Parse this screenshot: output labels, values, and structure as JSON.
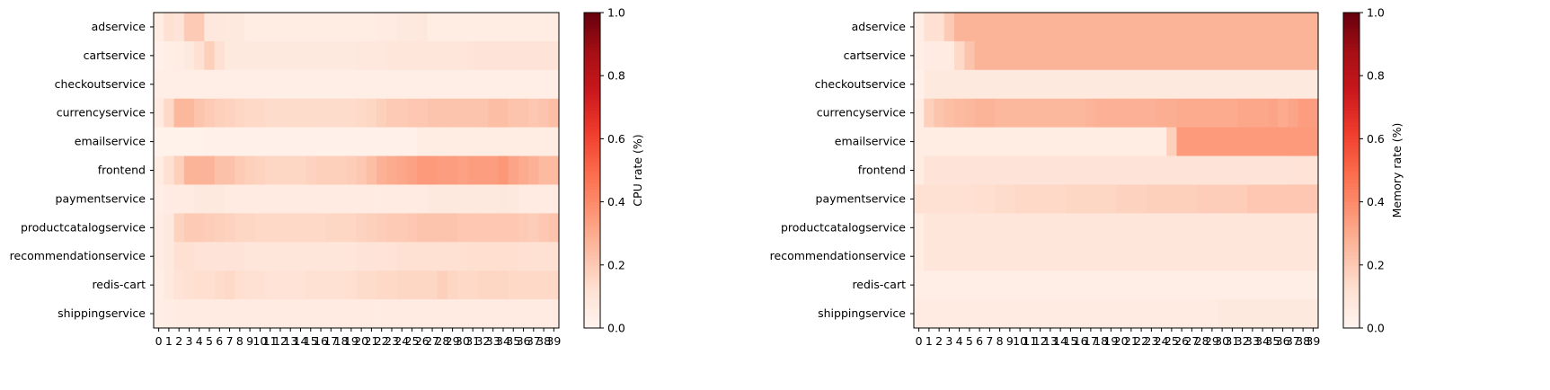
{
  "chart_data": [
    {
      "type": "heatmap",
      "title": "",
      "xlabel": "",
      "ylabel": "",
      "colorbar_label": "CPU rate (%)",
      "colormap": "Reds",
      "vmin": 0,
      "vmax": 1,
      "colorbar_ticks": [
        "0.0",
        "0.2",
        "0.4",
        "0.6",
        "0.8",
        "1.0"
      ],
      "x": [
        0,
        1,
        2,
        3,
        4,
        5,
        6,
        7,
        8,
        9,
        10,
        11,
        12,
        13,
        14,
        15,
        16,
        17,
        18,
        19,
        20,
        21,
        22,
        23,
        24,
        25,
        26,
        27,
        28,
        29,
        30,
        31,
        32,
        33,
        34,
        35,
        36,
        37,
        38,
        39
      ],
      "y": [
        "adservice",
        "cartservice",
        "checkoutservice",
        "currencyservice",
        "emailservice",
        "frontend",
        "paymentservice",
        "productcatalogservice",
        "recommendationservice",
        "redis-cart",
        "shippingservice"
      ],
      "values": [
        [
          0.05,
          0.12,
          0.1,
          0.2,
          0.2,
          0.08,
          0.08,
          0.07,
          0.07,
          0.05,
          0.05,
          0.05,
          0.05,
          0.05,
          0.05,
          0.05,
          0.05,
          0.05,
          0.05,
          0.05,
          0.05,
          0.05,
          0.06,
          0.06,
          0.07,
          0.07,
          0.08,
          0.05,
          0.05,
          0.05,
          0.05,
          0.05,
          0.05,
          0.05,
          0.05,
          0.05,
          0.05,
          0.05,
          0.05,
          0.05
        ],
        [
          0.03,
          0.04,
          0.05,
          0.07,
          0.12,
          0.18,
          0.12,
          0.07,
          0.07,
          0.07,
          0.07,
          0.07,
          0.07,
          0.07,
          0.07,
          0.07,
          0.07,
          0.07,
          0.07,
          0.07,
          0.08,
          0.08,
          0.08,
          0.09,
          0.09,
          0.09,
          0.09,
          0.09,
          0.09,
          0.09,
          0.09,
          0.1,
          0.1,
          0.1,
          0.1,
          0.1,
          0.1,
          0.1,
          0.1,
          0.1
        ],
        [
          0.04,
          0.04,
          0.04,
          0.04,
          0.04,
          0.04,
          0.04,
          0.04,
          0.04,
          0.04,
          0.04,
          0.04,
          0.04,
          0.04,
          0.04,
          0.04,
          0.04,
          0.04,
          0.04,
          0.04,
          0.04,
          0.04,
          0.04,
          0.04,
          0.04,
          0.04,
          0.04,
          0.04,
          0.04,
          0.04,
          0.04,
          0.04,
          0.04,
          0.04,
          0.04,
          0.04,
          0.04,
          0.04,
          0.04,
          0.04
        ],
        [
          0.06,
          0.15,
          0.26,
          0.26,
          0.22,
          0.2,
          0.18,
          0.17,
          0.16,
          0.15,
          0.15,
          0.14,
          0.14,
          0.14,
          0.14,
          0.14,
          0.14,
          0.14,
          0.14,
          0.14,
          0.15,
          0.16,
          0.18,
          0.2,
          0.2,
          0.21,
          0.21,
          0.22,
          0.22,
          0.22,
          0.22,
          0.22,
          0.22,
          0.24,
          0.24,
          0.22,
          0.22,
          0.21,
          0.22,
          0.24
        ],
        [
          0.02,
          0.02,
          0.02,
          0.02,
          0.02,
          0.03,
          0.03,
          0.03,
          0.03,
          0.03,
          0.03,
          0.03,
          0.03,
          0.03,
          0.03,
          0.03,
          0.03,
          0.03,
          0.03,
          0.03,
          0.03,
          0.03,
          0.03,
          0.03,
          0.03,
          0.03,
          0.05,
          0.05,
          0.05,
          0.05,
          0.05,
          0.05,
          0.05,
          0.05,
          0.05,
          0.05,
          0.05,
          0.05,
          0.05,
          0.05
        ],
        [
          0.05,
          0.12,
          0.18,
          0.27,
          0.27,
          0.27,
          0.23,
          0.23,
          0.2,
          0.18,
          0.17,
          0.16,
          0.16,
          0.16,
          0.16,
          0.17,
          0.18,
          0.18,
          0.18,
          0.19,
          0.21,
          0.24,
          0.28,
          0.3,
          0.31,
          0.33,
          0.35,
          0.35,
          0.34,
          0.34,
          0.33,
          0.34,
          0.34,
          0.34,
          0.36,
          0.32,
          0.3,
          0.28,
          0.25,
          0.25
        ],
        [
          0.04,
          0.06,
          0.06,
          0.06,
          0.07,
          0.07,
          0.07,
          0.06,
          0.06,
          0.06,
          0.06,
          0.06,
          0.06,
          0.06,
          0.06,
          0.06,
          0.06,
          0.06,
          0.06,
          0.06,
          0.06,
          0.06,
          0.06,
          0.06,
          0.06,
          0.06,
          0.06,
          0.07,
          0.07,
          0.07,
          0.07,
          0.07,
          0.07,
          0.07,
          0.08,
          0.07,
          0.06,
          0.06,
          0.06,
          0.06
        ],
        [
          0.05,
          0.07,
          0.17,
          0.2,
          0.2,
          0.19,
          0.18,
          0.17,
          0.16,
          0.16,
          0.15,
          0.15,
          0.15,
          0.15,
          0.15,
          0.15,
          0.15,
          0.16,
          0.16,
          0.16,
          0.17,
          0.18,
          0.19,
          0.2,
          0.2,
          0.21,
          0.22,
          0.22,
          0.22,
          0.22,
          0.21,
          0.21,
          0.21,
          0.21,
          0.21,
          0.21,
          0.2,
          0.19,
          0.21,
          0.22
        ],
        [
          0.05,
          0.07,
          0.12,
          0.12,
          0.11,
          0.1,
          0.1,
          0.1,
          0.1,
          0.09,
          0.09,
          0.09,
          0.09,
          0.09,
          0.09,
          0.09,
          0.09,
          0.09,
          0.09,
          0.09,
          0.1,
          0.1,
          0.11,
          0.11,
          0.12,
          0.12,
          0.12,
          0.12,
          0.12,
          0.12,
          0.12,
          0.13,
          0.13,
          0.13,
          0.13,
          0.13,
          0.12,
          0.12,
          0.12,
          0.12
        ],
        [
          0.04,
          0.07,
          0.11,
          0.12,
          0.13,
          0.13,
          0.14,
          0.15,
          0.13,
          0.12,
          0.12,
          0.11,
          0.11,
          0.11,
          0.11,
          0.12,
          0.12,
          0.12,
          0.12,
          0.13,
          0.14,
          0.14,
          0.15,
          0.15,
          0.16,
          0.16,
          0.16,
          0.16,
          0.18,
          0.16,
          0.15,
          0.15,
          0.16,
          0.16,
          0.16,
          0.15,
          0.15,
          0.15,
          0.15,
          0.15
        ],
        [
          0.04,
          0.05,
          0.06,
          0.06,
          0.06,
          0.06,
          0.06,
          0.06,
          0.06,
          0.06,
          0.06,
          0.06,
          0.06,
          0.06,
          0.06,
          0.06,
          0.06,
          0.06,
          0.06,
          0.06,
          0.06,
          0.06,
          0.06,
          0.06,
          0.06,
          0.06,
          0.06,
          0.06,
          0.06,
          0.06,
          0.06,
          0.06,
          0.06,
          0.06,
          0.06,
          0.06,
          0.06,
          0.06,
          0.06,
          0.06
        ]
      ]
    },
    {
      "type": "heatmap",
      "title": "",
      "xlabel": "",
      "ylabel": "",
      "colorbar_label": "Memory rate (%)",
      "colormap": "Reds",
      "vmin": 0,
      "vmax": 1,
      "colorbar_ticks": [
        "0.0",
        "0.2",
        "0.4",
        "0.6",
        "0.8",
        "1.0"
      ],
      "x": [
        0,
        1,
        2,
        3,
        4,
        5,
        6,
        7,
        8,
        9,
        10,
        11,
        12,
        13,
        14,
        15,
        16,
        17,
        18,
        19,
        20,
        21,
        22,
        23,
        24,
        25,
        26,
        27,
        28,
        29,
        30,
        31,
        32,
        33,
        34,
        35,
        36,
        37,
        38,
        39
      ],
      "y": [
        "adservice",
        "cartservice",
        "checkoutservice",
        "currencyservice",
        "emailservice",
        "frontend",
        "paymentservice",
        "productcatalogservice",
        "recommendationservice",
        "redis-cart",
        "shippingservice"
      ],
      "values": [
        [
          0.04,
          0.12,
          0.12,
          0.2,
          0.27,
          0.27,
          0.27,
          0.27,
          0.27,
          0.27,
          0.27,
          0.27,
          0.27,
          0.27,
          0.27,
          0.27,
          0.27,
          0.27,
          0.27,
          0.27,
          0.27,
          0.27,
          0.27,
          0.27,
          0.27,
          0.27,
          0.27,
          0.27,
          0.27,
          0.27,
          0.27,
          0.27,
          0.27,
          0.27,
          0.27,
          0.27,
          0.27,
          0.27,
          0.27,
          0.27
        ],
        [
          0.04,
          0.06,
          0.06,
          0.06,
          0.15,
          0.22,
          0.27,
          0.27,
          0.27,
          0.27,
          0.27,
          0.27,
          0.27,
          0.27,
          0.27,
          0.27,
          0.27,
          0.27,
          0.27,
          0.27,
          0.27,
          0.27,
          0.27,
          0.27,
          0.27,
          0.27,
          0.27,
          0.27,
          0.27,
          0.27,
          0.27,
          0.27,
          0.27,
          0.27,
          0.27,
          0.27,
          0.27,
          0.27,
          0.27,
          0.27
        ],
        [
          0.03,
          0.07,
          0.07,
          0.07,
          0.07,
          0.07,
          0.07,
          0.07,
          0.07,
          0.07,
          0.07,
          0.07,
          0.07,
          0.07,
          0.07,
          0.07,
          0.07,
          0.07,
          0.07,
          0.07,
          0.07,
          0.07,
          0.07,
          0.07,
          0.07,
          0.07,
          0.07,
          0.07,
          0.07,
          0.07,
          0.07,
          0.07,
          0.07,
          0.07,
          0.07,
          0.07,
          0.07,
          0.07,
          0.07,
          0.07
        ],
        [
          0.05,
          0.18,
          0.22,
          0.24,
          0.25,
          0.26,
          0.27,
          0.27,
          0.26,
          0.26,
          0.26,
          0.26,
          0.26,
          0.26,
          0.26,
          0.26,
          0.26,
          0.27,
          0.28,
          0.28,
          0.28,
          0.28,
          0.28,
          0.28,
          0.29,
          0.29,
          0.3,
          0.3,
          0.3,
          0.3,
          0.3,
          0.3,
          0.31,
          0.31,
          0.31,
          0.32,
          0.3,
          0.32,
          0.34,
          0.34
        ],
        [
          0.05,
          0.05,
          0.05,
          0.05,
          0.05,
          0.05,
          0.05,
          0.05,
          0.05,
          0.05,
          0.05,
          0.05,
          0.05,
          0.05,
          0.05,
          0.05,
          0.05,
          0.05,
          0.05,
          0.05,
          0.05,
          0.05,
          0.05,
          0.05,
          0.05,
          0.18,
          0.35,
          0.35,
          0.35,
          0.35,
          0.35,
          0.35,
          0.35,
          0.35,
          0.35,
          0.35,
          0.35,
          0.35,
          0.35,
          0.35
        ],
        [
          0.05,
          0.1,
          0.1,
          0.1,
          0.1,
          0.1,
          0.1,
          0.1,
          0.1,
          0.1,
          0.1,
          0.1,
          0.1,
          0.1,
          0.1,
          0.1,
          0.1,
          0.1,
          0.1,
          0.1,
          0.1,
          0.1,
          0.1,
          0.1,
          0.1,
          0.1,
          0.1,
          0.1,
          0.1,
          0.1,
          0.1,
          0.1,
          0.1,
          0.1,
          0.1,
          0.1,
          0.1,
          0.11,
          0.11,
          0.11
        ],
        [
          0.12,
          0.12,
          0.12,
          0.12,
          0.12,
          0.12,
          0.13,
          0.13,
          0.14,
          0.14,
          0.15,
          0.15,
          0.15,
          0.15,
          0.15,
          0.16,
          0.16,
          0.16,
          0.16,
          0.16,
          0.17,
          0.17,
          0.17,
          0.18,
          0.18,
          0.18,
          0.18,
          0.18,
          0.19,
          0.19,
          0.19,
          0.19,
          0.19,
          0.21,
          0.21,
          0.21,
          0.21,
          0.21,
          0.21,
          0.21
        ],
        [
          0.05,
          0.09,
          0.09,
          0.09,
          0.09,
          0.09,
          0.09,
          0.09,
          0.09,
          0.09,
          0.09,
          0.09,
          0.09,
          0.09,
          0.09,
          0.09,
          0.09,
          0.09,
          0.09,
          0.09,
          0.09,
          0.09,
          0.09,
          0.09,
          0.09,
          0.09,
          0.09,
          0.09,
          0.09,
          0.09,
          0.09,
          0.09,
          0.09,
          0.09,
          0.09,
          0.09,
          0.09,
          0.09,
          0.09,
          0.09
        ],
        [
          0.05,
          0.09,
          0.09,
          0.09,
          0.09,
          0.09,
          0.09,
          0.09,
          0.09,
          0.09,
          0.09,
          0.09,
          0.09,
          0.09,
          0.09,
          0.09,
          0.09,
          0.09,
          0.09,
          0.09,
          0.09,
          0.09,
          0.09,
          0.09,
          0.09,
          0.09,
          0.09,
          0.09,
          0.09,
          0.09,
          0.09,
          0.09,
          0.09,
          0.09,
          0.09,
          0.09,
          0.09,
          0.09,
          0.09,
          0.09
        ],
        [
          0.04,
          0.04,
          0.04,
          0.04,
          0.04,
          0.04,
          0.04,
          0.04,
          0.04,
          0.04,
          0.04,
          0.04,
          0.04,
          0.04,
          0.04,
          0.04,
          0.04,
          0.04,
          0.04,
          0.04,
          0.04,
          0.04,
          0.04,
          0.04,
          0.04,
          0.04,
          0.04,
          0.04,
          0.04,
          0.04,
          0.04,
          0.04,
          0.04,
          0.04,
          0.04,
          0.04,
          0.04,
          0.04,
          0.04,
          0.04
        ],
        [
          0.06,
          0.06,
          0.06,
          0.06,
          0.06,
          0.06,
          0.06,
          0.06,
          0.06,
          0.06,
          0.06,
          0.06,
          0.06,
          0.06,
          0.06,
          0.06,
          0.06,
          0.06,
          0.06,
          0.06,
          0.06,
          0.06,
          0.06,
          0.06,
          0.06,
          0.06,
          0.06,
          0.06,
          0.06,
          0.06,
          0.07,
          0.07,
          0.07,
          0.07,
          0.07,
          0.07,
          0.07,
          0.07,
          0.07,
          0.07
        ]
      ]
    }
  ]
}
